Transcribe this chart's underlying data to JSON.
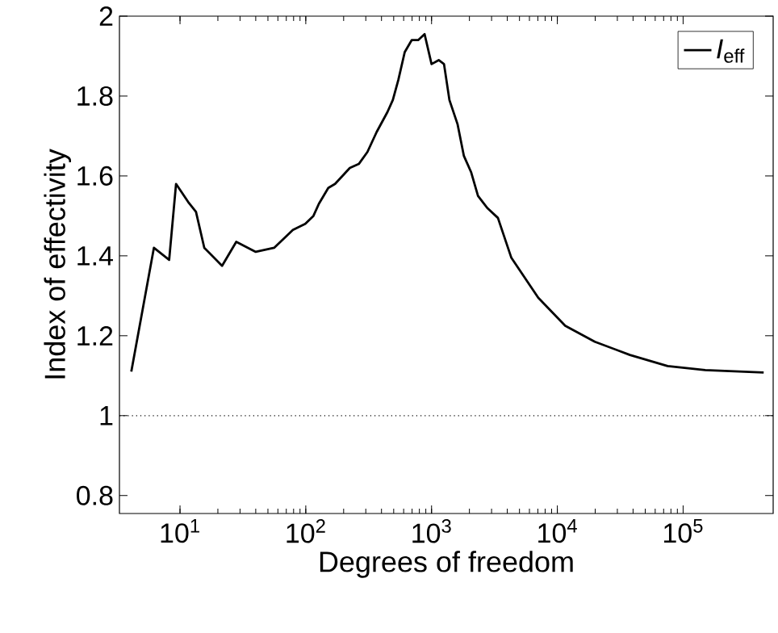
{
  "chart_data": {
    "type": "line",
    "xlabel": "Degrees of freedom",
    "ylabel": "Index of effectivity",
    "log": "x",
    "grid": false,
    "legend": "top right",
    "marker": "none",
    "line_style": "solid",
    "xlim": [
      3.3,
      520000
    ],
    "ylim": [
      0.755,
      2
    ],
    "xticks": [
      {
        "value": 10,
        "label": "10$^{1}$"
      },
      {
        "value": 100,
        "label": "10$^{2}$"
      },
      {
        "value": 1000,
        "label": "10$^{3}$"
      },
      {
        "value": 10000,
        "label": "10$^{4}$"
      },
      {
        "value": 100000,
        "label": "10$^{5}$"
      }
    ],
    "yticks": [
      0.8,
      1,
      1.2,
      1.4,
      1.6,
      1.8,
      2
    ],
    "ref_lines": [
      {
        "axis": "y",
        "value": 1,
        "color": "#000000",
        "line_style": "dotted"
      }
    ],
    "series": [
      {
        "name": "*I*$_{eff}$",
        "color": "#000000",
        "x": [
          4.1,
          6.2,
          8.2,
          9.3,
          11.6,
          13.4,
          15.6,
          21.6,
          28,
          40,
          56,
          79,
          99,
          115,
          127,
          151,
          171,
          224,
          264,
          309,
          366,
          446,
          492,
          544,
          612,
          695,
          782,
          880,
          1000,
          1140,
          1256,
          1387,
          1608,
          1808,
          2060,
          2340,
          2770,
          3370,
          4310,
          7050,
          11560,
          19860,
          37760,
          75300,
          150000,
          437000
        ],
        "values": [
          1.11,
          1.42,
          1.39,
          1.58,
          1.535,
          1.51,
          1.42,
          1.375,
          1.435,
          1.41,
          1.42,
          1.465,
          1.48,
          1.5,
          1.53,
          1.57,
          1.58,
          1.62,
          1.63,
          1.66,
          1.71,
          1.76,
          1.79,
          1.84,
          1.91,
          1.94,
          1.94,
          1.955,
          1.88,
          1.89,
          1.88,
          1.79,
          1.73,
          1.65,
          1.61,
          1.55,
          1.52,
          1.495,
          1.395,
          1.295,
          1.225,
          1.185,
          1.152,
          1.124,
          1.114,
          1.108
        ]
      }
    ]
  }
}
